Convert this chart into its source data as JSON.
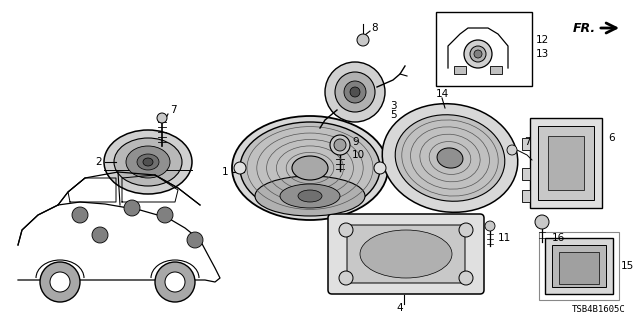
{
  "bg_color": "#ffffff",
  "diagram_code": "TSB4B1605C",
  "fr_label": "FR.",
  "figsize": [
    6.4,
    3.2
  ],
  "dpi": 100
}
